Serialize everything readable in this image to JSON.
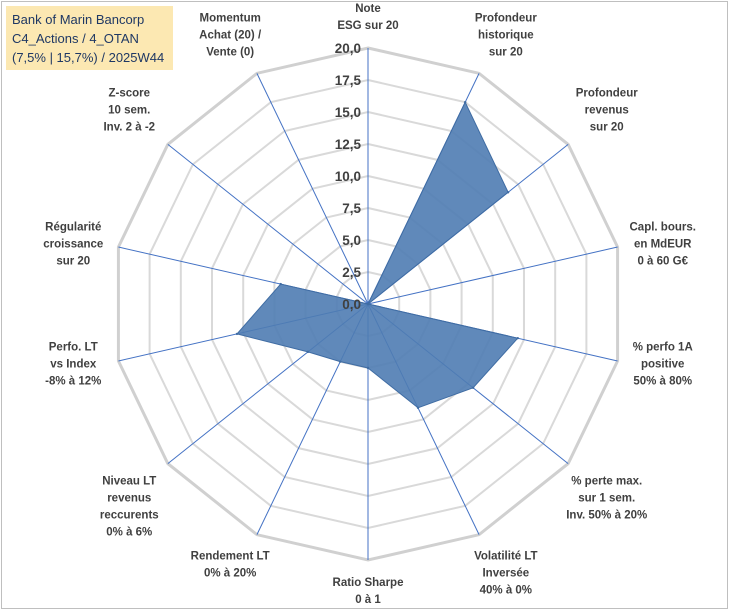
{
  "title": {
    "line1": "Bank of Marin Bancorp",
    "line2": "C4_Actions / 4_OTAN",
    "line3": "(7,5% | 15,7%) / 2025W44"
  },
  "chart_data": {
    "type": "radar",
    "r_min": 0,
    "r_max": 20,
    "r_step": 2.5,
    "grid": true,
    "tick_labels": [
      "0,0",
      "2,5",
      "5,0",
      "7,5",
      "10,0",
      "12,5",
      "15,0",
      "17,5",
      "20,0"
    ],
    "axes": [
      [
        "Note",
        "ESG sur 20"
      ],
      [
        "Profondeur",
        "historique",
        "sur 20"
      ],
      [
        "Profondeur",
        "revenus",
        "sur 20"
      ],
      [
        "Capl. bours.",
        "en MdEUR",
        "0 à 60 G€"
      ],
      [
        "% perfo 1A",
        "positive",
        "50% à 80%"
      ],
      [
        "% perte max.",
        "sur 1 sem.",
        "Inv. 50% à 20%"
      ],
      [
        "Volatilité LT",
        "Inversée",
        "40% à 0%"
      ],
      [
        "Ratio Sharpe",
        "0 à 1"
      ],
      [
        "Rendement LT",
        "0% à 20%"
      ],
      [
        "Niveau LT",
        "revenus",
        "reccurents",
        "0% à 6%"
      ],
      [
        "Perfo. LT",
        "vs Index",
        "-8% à 12%"
      ],
      [
        "Régularité",
        "croissance",
        "sur 20"
      ],
      [
        "Z-score",
        "10 sem.",
        "Inv. 2 à -2"
      ],
      [
        "Momentum",
        "Achat (20) /",
        "Vente (0)"
      ]
    ],
    "values": [
      0,
      17.5,
      14,
      0,
      12,
      10.5,
      9,
      5,
      5,
      6,
      10.5,
      7,
      0,
      0
    ],
    "colors": {
      "fill": "#4f7cb3",
      "stroke": "#3f6ca3",
      "axis": "#4472c4",
      "grid": "#d9d9d9"
    }
  }
}
